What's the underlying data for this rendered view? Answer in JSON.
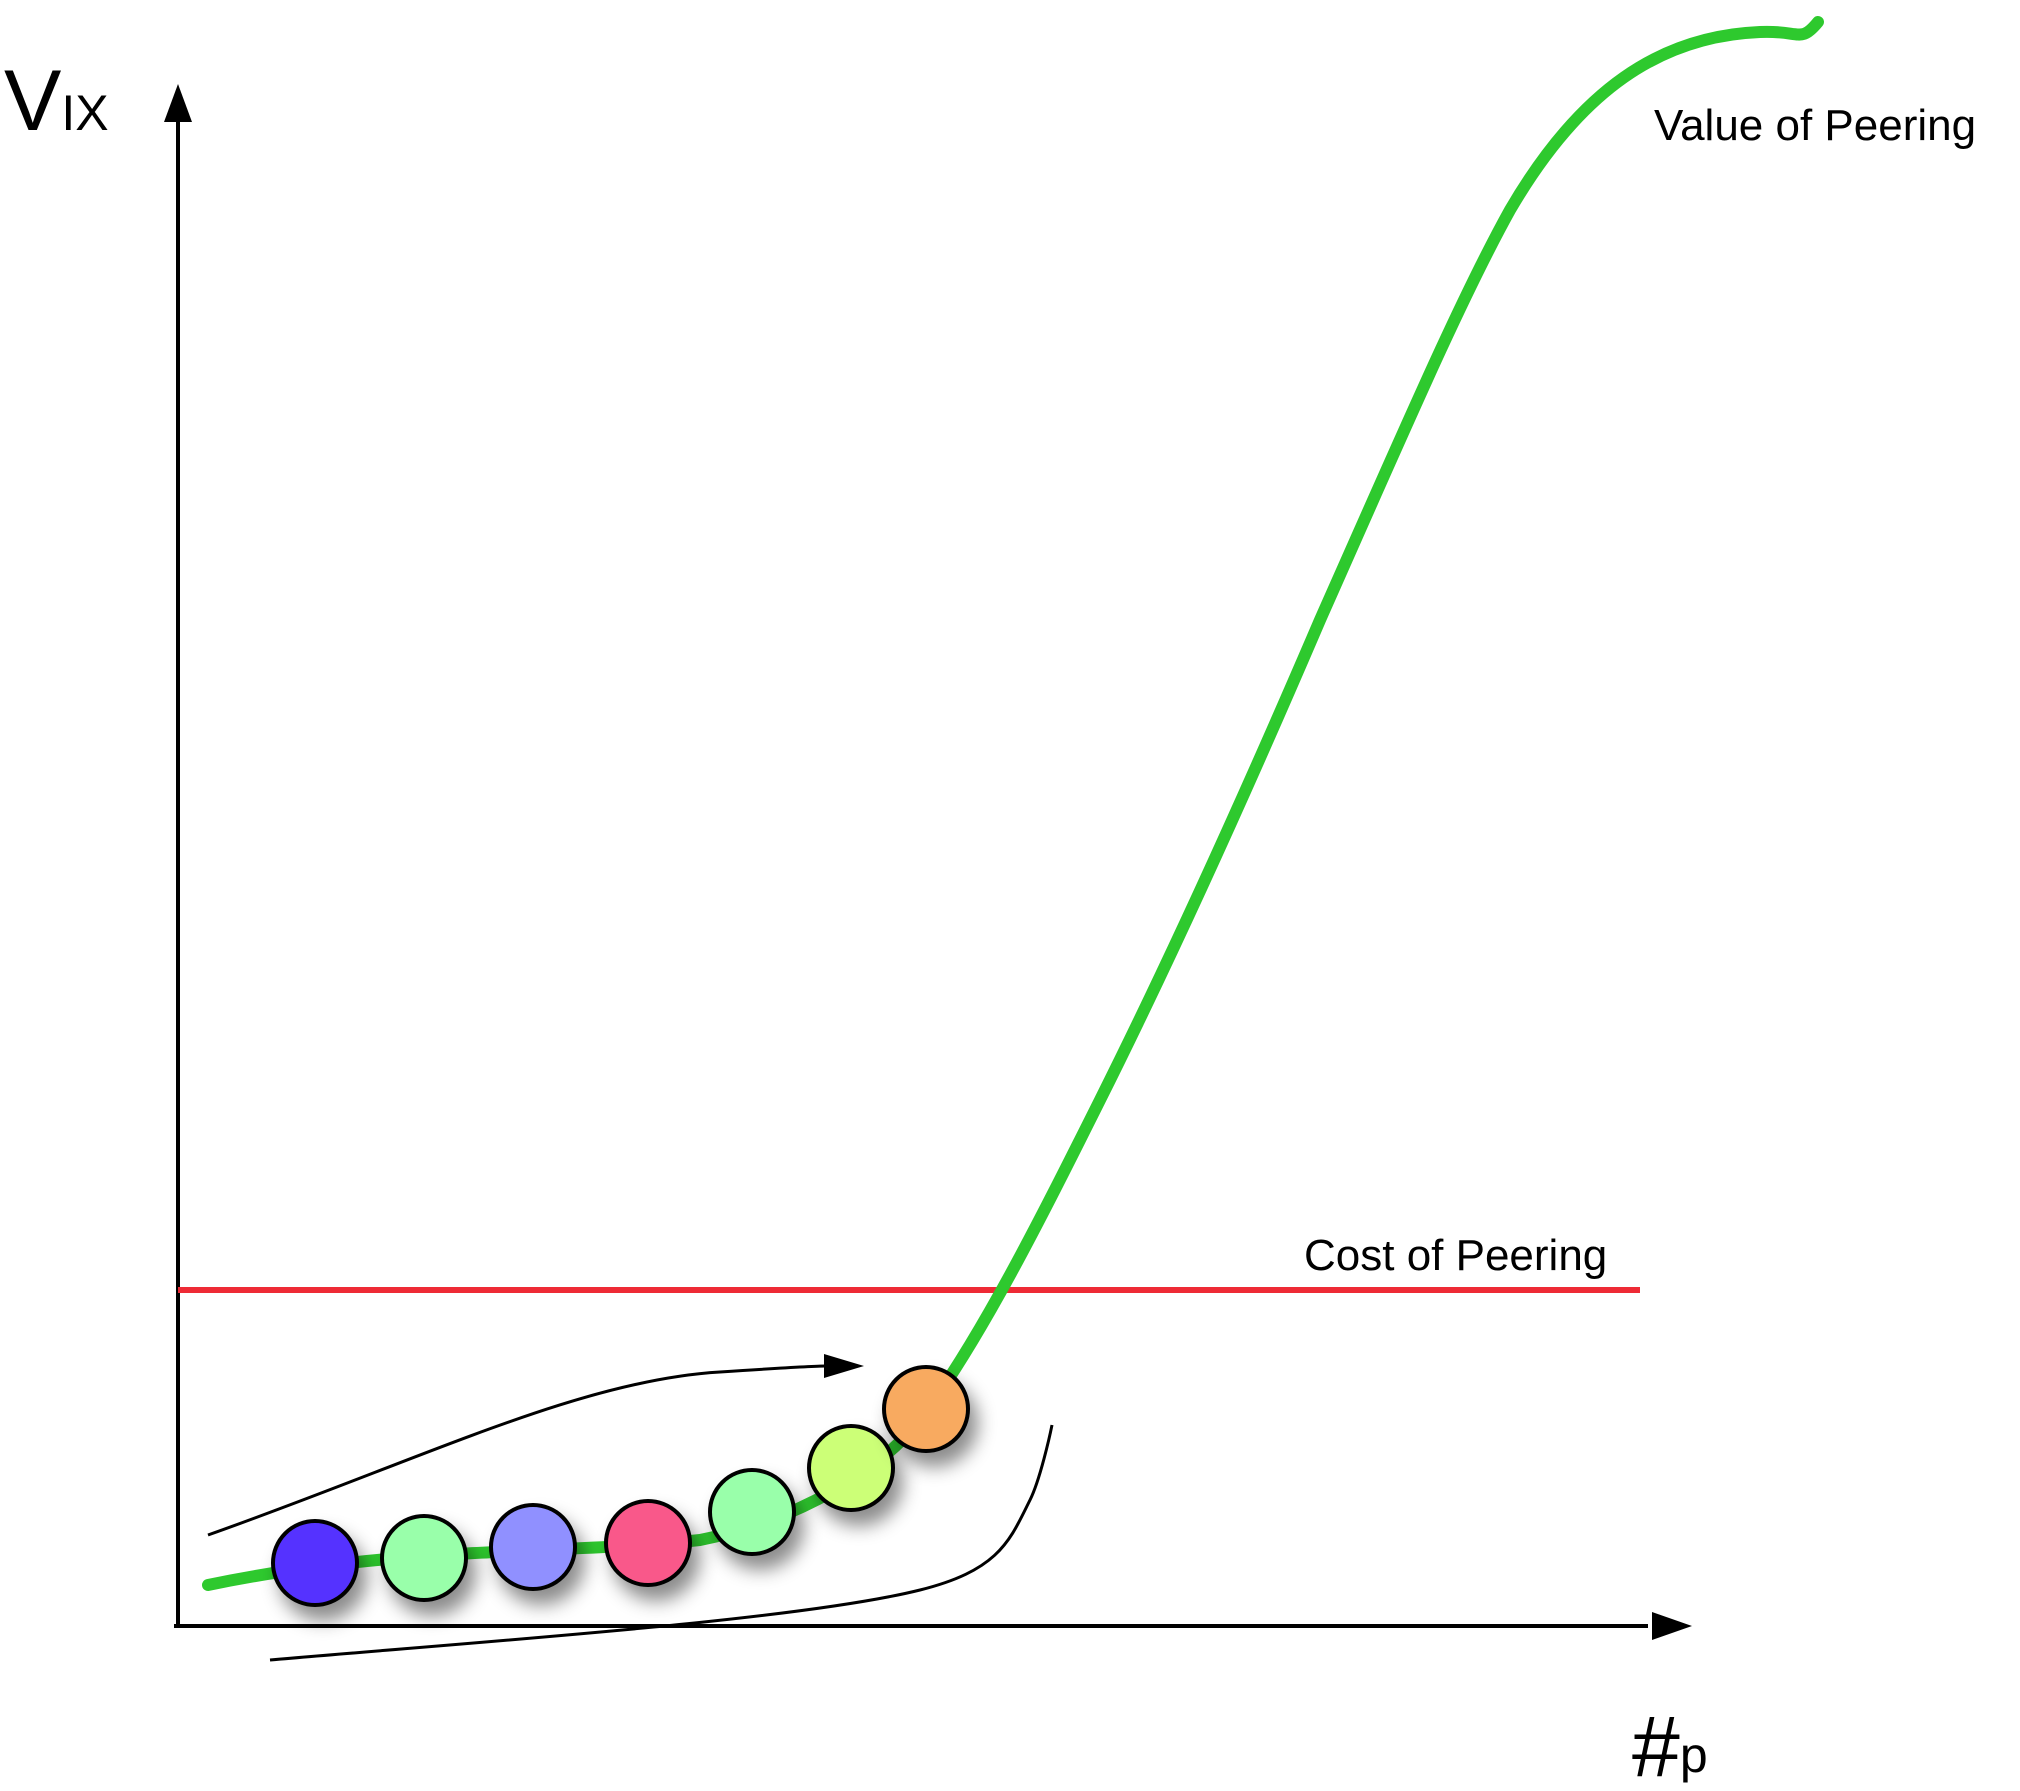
{
  "axes": {
    "y_label_main": "V",
    "y_label_sub": "IX",
    "x_label_main": "#",
    "x_label_sub": "p"
  },
  "curves": {
    "value_label": "Value of Peering",
    "cost_label": "Cost of Peering"
  },
  "colors": {
    "value_curve": "#2ec92e",
    "cost_line": "#ee2a35",
    "axes": "#000000",
    "node_colors": [
      "#5533ff",
      "#99ffaa",
      "#9090ff",
      "#f9588a",
      "#99ffaa",
      "#ccff77",
      "#f8aa60"
    ]
  },
  "nodes": [
    {
      "label": "",
      "color": "#5533ff"
    },
    {
      "label": "",
      "color": "#99ffaa"
    },
    {
      "label": "",
      "color": "#9090ff"
    },
    {
      "label": "",
      "color": "#f9588a"
    },
    {
      "label": "",
      "color": "#99ffaa"
    },
    {
      "label": "",
      "color": "#ccff77"
    },
    {
      "label": "",
      "color": "#f8aa60"
    }
  ]
}
